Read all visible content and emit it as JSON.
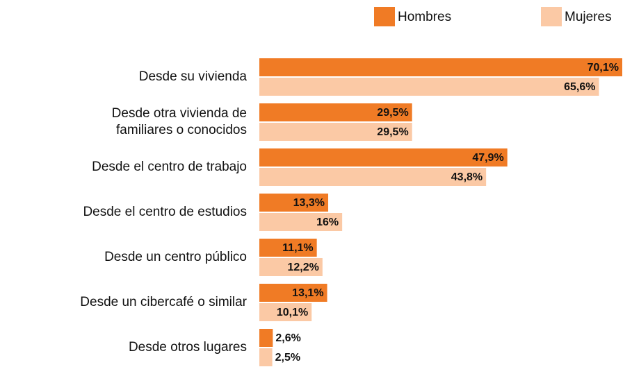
{
  "chart_data": {
    "type": "bar",
    "orientation": "horizontal",
    "categories": [
      "Desde su vivienda",
      "Desde otra vivienda de\nfamiliares o conocidos",
      "Desde el centro de trabajo",
      "Desde el centro de estudios",
      "Desde un centro público",
      "Desde un cibercafé o similar",
      "Desde otros lugares"
    ],
    "series": [
      {
        "name": "Hombres",
        "color": "#f07b25",
        "values": [
          70.1,
          29.5,
          47.9,
          13.3,
          11.1,
          13.1,
          2.6
        ],
        "value_labels": [
          "70,1%",
          "29,5%",
          "47,9%",
          "13,3%",
          "11,1%",
          "13,1%",
          "2,6%"
        ]
      },
      {
        "name": "Mujeres",
        "color": "#fbc9a5",
        "values": [
          65.6,
          29.5,
          43.8,
          16,
          12.2,
          10.1,
          2.5
        ],
        "value_labels": [
          "65,6%",
          "29,5%",
          "43,8%",
          "16%",
          "12,2%",
          "10,1%",
          "2,5%"
        ]
      }
    ],
    "legend": "top-right"
  }
}
